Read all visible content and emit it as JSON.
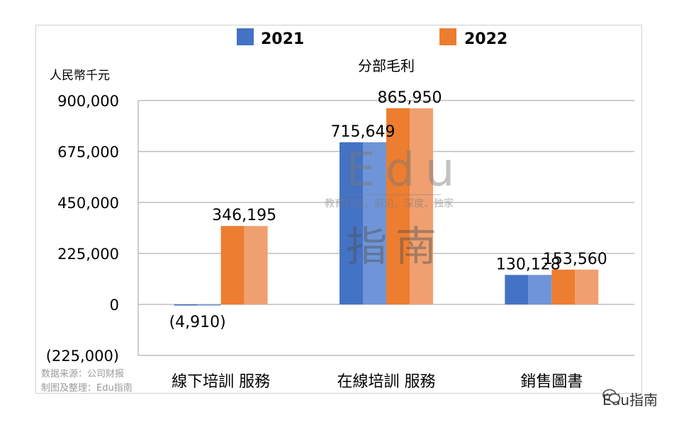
{
  "chart_data": {
    "type": "bar",
    "title": "分部毛利",
    "unit_label": "人民幣千元",
    "categories": [
      "線下培訓 服務",
      "在線培訓 服務",
      "銷售圖書"
    ],
    "series": [
      {
        "name": "2021",
        "values": [
          -4910,
          715649,
          130128
        ],
        "labels": [
          "(4,910)",
          "715,649",
          "130,128"
        ]
      },
      {
        "name": "2022",
        "values": [
          346195,
          865950,
          153560
        ],
        "labels": [
          "346,195",
          "865,950",
          "153,560"
        ]
      }
    ],
    "ylim": [
      -225000,
      900000
    ],
    "yticks": [
      900000,
      675000,
      450000,
      225000,
      0,
      -225000
    ],
    "ytick_labels": [
      "900,000",
      "675,000",
      "450,000",
      "225,000",
      "0",
      "(225,000)"
    ],
    "grid": true,
    "legend_position": "top"
  },
  "colors": {
    "series_2021": "#4472c4",
    "series_2021_light": "#6f95d8",
    "series_2022": "#ed7d31",
    "series_2022_light": "#f0a070"
  },
  "watermark": {
    "latin": "Edu",
    "chinese": "指南",
    "slogan": "教育行业，前沿、深度、独家"
  },
  "notes": {
    "source": "数据来源：公司财报",
    "compiled": "制图及整理：Edu指南"
  },
  "brand": {
    "icon": "wechat-icon",
    "name": "Edu指南"
  }
}
